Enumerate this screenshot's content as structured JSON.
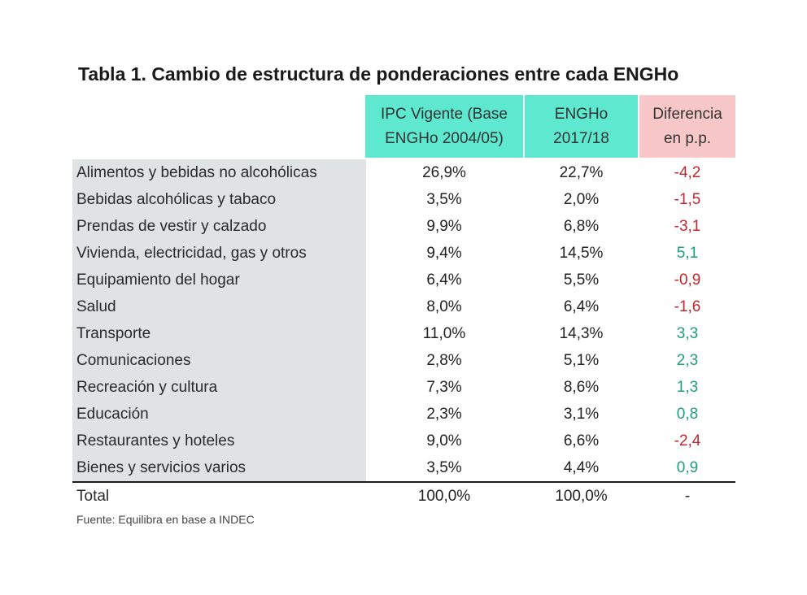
{
  "title": "Tabla 1. Cambio de estructura de ponderaciones entre cada ENGHo",
  "headers": {
    "ipc": [
      "IPC Vigente (Base",
      "ENGHo  2004/05)"
    ],
    "engho": [
      "ENGHo",
      "2017/18"
    ],
    "diferencia": [
      "Diferencia",
      "en p.p."
    ]
  },
  "rows": [
    {
      "label": "Alimentos y bebidas no alcohólicas",
      "ipc": "26,9%",
      "engho": "22,7%",
      "dif": "-4,2"
    },
    {
      "label": "Bebidas alcohólicas y tabaco",
      "ipc": "3,5%",
      "engho": "2,0%",
      "dif": "-1,5"
    },
    {
      "label": "Prendas de vestir y calzado",
      "ipc": "9,9%",
      "engho": "6,8%",
      "dif": "-3,1"
    },
    {
      "label": "Vivienda, electricidad, gas y otros",
      "ipc": "9,4%",
      "engho": "14,5%",
      "dif": "5,1"
    },
    {
      "label": "Equipamiento del hogar",
      "ipc": "6,4%",
      "engho": "5,5%",
      "dif": "-0,9"
    },
    {
      "label": "Salud",
      "ipc": "8,0%",
      "engho": "6,4%",
      "dif": "-1,6"
    },
    {
      "label": "Transporte",
      "ipc": "11,0%",
      "engho": "14,3%",
      "dif": "3,3"
    },
    {
      "label": "Comunicaciones",
      "ipc": "2,8%",
      "engho": "5,1%",
      "dif": "2,3"
    },
    {
      "label": "Recreación y cultura",
      "ipc": "7,3%",
      "engho": "8,6%",
      "dif": "1,3"
    },
    {
      "label": "Educación",
      "ipc": "2,3%",
      "engho": "3,1%",
      "dif": "0,8"
    },
    {
      "label": "Restaurantes y hoteles",
      "ipc": "9,0%",
      "engho": "6,6%",
      "dif": "-2,4"
    },
    {
      "label": "Bienes y servicios varios",
      "ipc": "3,5%",
      "engho": "4,4%",
      "dif": "0,9"
    }
  ],
  "total": {
    "label": "Total",
    "ipc": "100,0%",
    "engho": "100,0%",
    "dif": "-"
  },
  "source": "Fuente: Equilibra en base a INDEC",
  "colors": {
    "header_ipc_bg": "#5ee8d0",
    "header_engho_bg": "#5ee8d0",
    "header_dif_bg": "#f8c8c8",
    "label_col_bg": "#dfe3e3",
    "negative": "#c0282d",
    "positive": "#1f9e7c"
  }
}
